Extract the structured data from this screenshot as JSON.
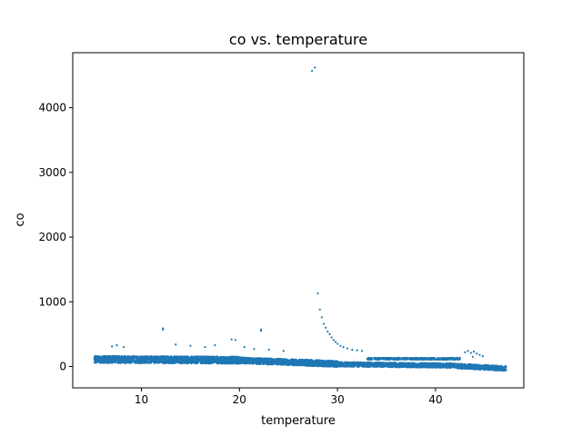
{
  "chart_data": {
    "type": "scatter",
    "title": "co vs. temperature",
    "xlabel": "temperature",
    "ylabel": "co",
    "xlim": [
      3.0,
      49.0
    ],
    "ylim": [
      -330,
      4850
    ],
    "xticks": [
      10,
      20,
      30,
      40
    ],
    "yticks": [
      0,
      1000,
      2000,
      3000,
      4000
    ],
    "grid": false,
    "legend": "none",
    "marker_color": "#1f77b4",
    "series": [
      {
        "points": [
          [
            27.4,
            4570
          ],
          [
            27.7,
            4620
          ],
          [
            28.0,
            1130
          ],
          [
            28.2,
            880
          ],
          [
            28.4,
            760
          ],
          [
            28.6,
            660
          ],
          [
            28.8,
            600
          ],
          [
            29.0,
            540
          ],
          [
            29.2,
            500
          ],
          [
            29.4,
            450
          ],
          [
            29.6,
            410
          ],
          [
            29.8,
            380
          ],
          [
            30.0,
            350
          ],
          [
            30.3,
            320
          ],
          [
            30.6,
            300
          ],
          [
            31.0,
            280
          ],
          [
            31.5,
            260
          ],
          [
            32.0,
            250
          ],
          [
            32.5,
            240
          ],
          [
            12.2,
            590
          ],
          [
            12.2,
            570
          ],
          [
            22.2,
            570
          ],
          [
            22.2,
            550
          ],
          [
            19.2,
            420
          ],
          [
            19.6,
            410
          ],
          [
            7.0,
            310
          ],
          [
            7.5,
            330
          ],
          [
            8.2,
            300
          ],
          [
            13.5,
            340
          ],
          [
            15.0,
            320
          ],
          [
            16.5,
            300
          ],
          [
            17.5,
            330
          ],
          [
            20.5,
            300
          ],
          [
            21.5,
            270
          ],
          [
            23.0,
            260
          ],
          [
            24.5,
            240
          ],
          [
            43.0,
            220
          ],
          [
            43.3,
            240
          ],
          [
            43.6,
            210
          ],
          [
            43.9,
            230
          ],
          [
            44.2,
            200
          ],
          [
            44.5,
            180
          ],
          [
            43.8,
            150
          ],
          [
            44.8,
            160
          ]
        ]
      }
    ]
  }
}
